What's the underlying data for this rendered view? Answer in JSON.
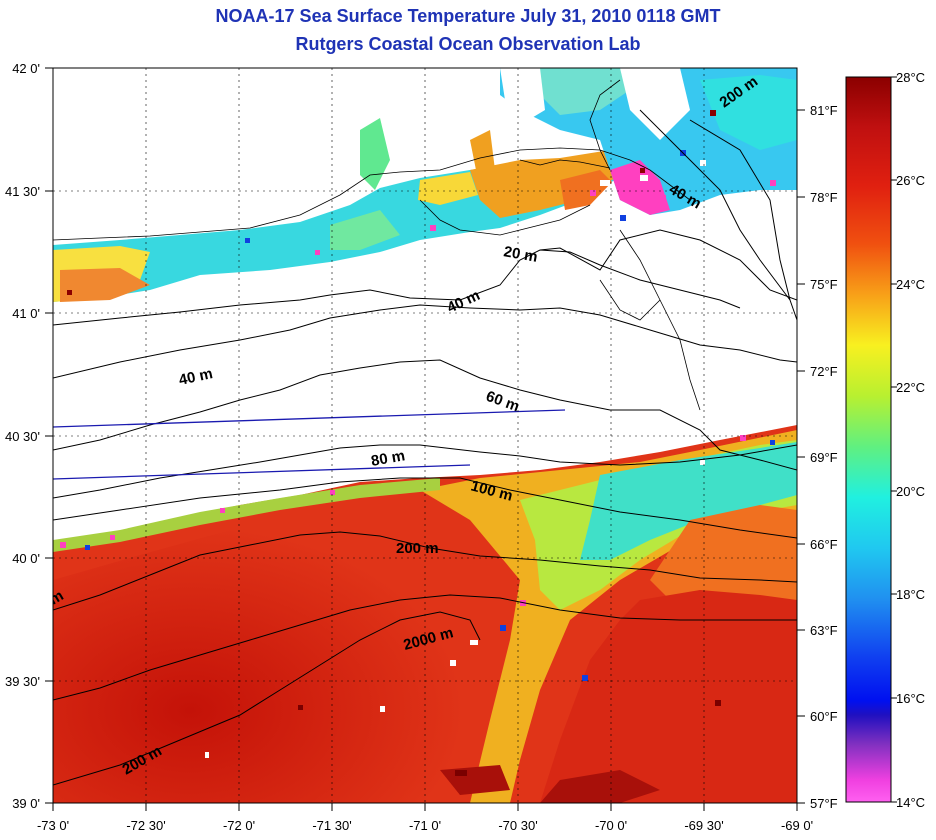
{
  "title": "NOAA-17 Sea Surface Temperature July 31, 2010 0118 GMT",
  "subtitle": "Rutgers Coastal Ocean Observation Lab",
  "lat_labels": [
    "42 0'",
    "41 30'",
    "41 0'",
    "40 30'",
    "40 0'",
    "39 30'",
    "39 0'"
  ],
  "lon_labels": [
    "-73 0'",
    "-72 30'",
    "-72 0'",
    "-71 30'",
    "-71 0'",
    "-70 30'",
    "-70 0'",
    "-69 30'",
    "-69 0'"
  ],
  "fahrenheit_labels": [
    "81°F",
    "78°F",
    "75°F",
    "72°F",
    "69°F",
    "66°F",
    "63°F",
    "60°F",
    "57°F"
  ],
  "celsius_labels": [
    "28°C",
    "26°C",
    "24°C",
    "22°C",
    "20°C",
    "18°C",
    "16°C",
    "14°C"
  ],
  "contour_labels": [
    "200 m",
    "40 m",
    "20 m",
    "40 m",
    "40 m",
    "60 m",
    "80 m",
    "100 m",
    "200 m",
    "2000 m",
    "200 m",
    "m"
  ],
  "colors": {
    "title": "#1f33b5",
    "land": "#ffffff",
    "warm": "#d42410",
    "hot": "#b01008",
    "mid": "#f0a020",
    "cool": "#20d8d8",
    "cold": "#1060e0"
  }
}
